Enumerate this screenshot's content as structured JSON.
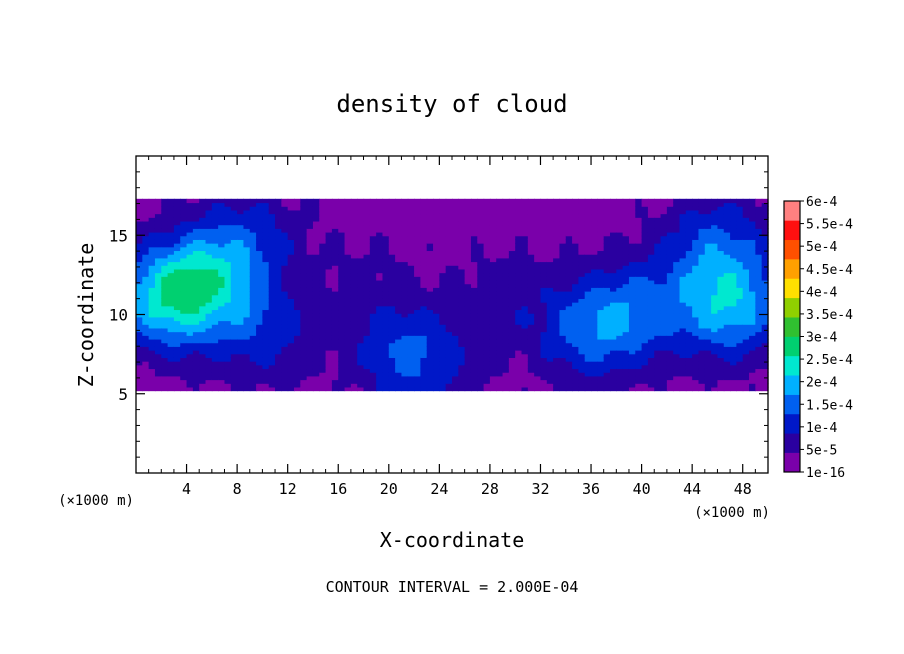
{
  "chart_data": {
    "type": "heatmap",
    "title": "density of cloud",
    "xlabel": "X-coordinate",
    "ylabel": "Z-coordinate",
    "x_unit": "(×1000 m)",
    "z_unit": "(×1000 m)",
    "xlim": [
      0,
      50
    ],
    "ylim": [
      0,
      20
    ],
    "x_ticks": [
      4,
      8,
      12,
      16,
      20,
      24,
      28,
      32,
      36,
      40,
      44,
      48
    ],
    "y_ticks": [
      5,
      10,
      15
    ],
    "footer": "CONTOUR INTERVAL = 2.000E-04",
    "colorbar": {
      "levels": [
        "1e-16",
        "5e-5",
        "1e-4",
        "1.5e-4",
        "2e-4",
        "2.5e-4",
        "3e-4",
        "3.5e-4",
        "4e-4",
        "4.5e-4",
        "5e-4",
        "5.5e-4",
        "6e-4"
      ],
      "colors": [
        "#7a00aa",
        "#2a00a0",
        "#0018c8",
        "#0060f0",
        "#00b0ff",
        "#00e8d0",
        "#00d070",
        "#30c030",
        "#90d000",
        "#ffe000",
        "#ffa000",
        "#ff5000",
        "#ff1010",
        "#ff8080"
      ]
    },
    "field": {
      "description_units": "cloud density, ×1e-4",
      "cloud_layer_z": [
        5.2,
        17.3
      ],
      "blobs": [
        {
          "x": 2.5,
          "z": 11.0,
          "value": 2.3
        },
        {
          "x": 6.0,
          "z": 12.5,
          "value": 1.5
        },
        {
          "x": 10.0,
          "z": 9.0,
          "value": 1.0
        },
        {
          "x": 9.0,
          "z": 15.0,
          "value": 0.8
        },
        {
          "x": 21.0,
          "z": 8.0,
          "value": 0.9
        },
        {
          "x": 23.0,
          "z": 6.5,
          "value": 0.7
        },
        {
          "x": 18.0,
          "z": 12.5,
          "value": 0.3
        },
        {
          "x": 36.0,
          "z": 9.0,
          "value": 1.4
        },
        {
          "x": 40.0,
          "z": 10.5,
          "value": 1.1
        },
        {
          "x": 47.0,
          "z": 10.5,
          "value": 2.0
        },
        {
          "x": 46.0,
          "z": 14.5,
          "value": 1.2
        },
        {
          "x": 29.0,
          "z": 11.0,
          "value": 0.5
        }
      ]
    }
  }
}
